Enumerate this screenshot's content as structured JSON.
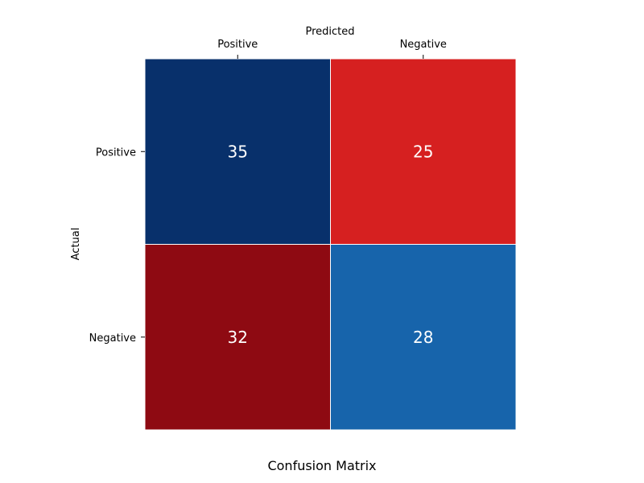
{
  "chart_data": {
    "type": "heatmap",
    "title": "Confusion Matrix",
    "xlabel": "Predicted",
    "ylabel": "Actual",
    "x_categories": [
      "Positive",
      "Negative"
    ],
    "y_categories": [
      "Positive",
      "Negative"
    ],
    "values": [
      [
        35,
        25
      ],
      [
        32,
        28
      ]
    ],
    "cell_colors": [
      [
        "#08306b",
        "#d62020"
      ],
      [
        "#8e0a12",
        "#1764ab"
      ]
    ],
    "grid": false,
    "x_axis_position": "top"
  }
}
